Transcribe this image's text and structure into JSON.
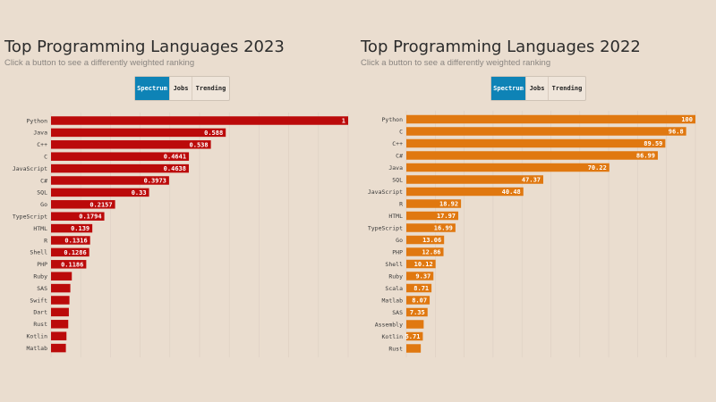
{
  "colors": {
    "background": "#eaddcf",
    "button_active": "#0e83b6",
    "bar_2023": "#bb0a0a",
    "bar_2022": "#e07810",
    "grid": "#dccfc2"
  },
  "left": {
    "title": "Top Programming Languages 2023",
    "subtitle": "Click a button to see a differently weighted ranking",
    "buttons": [
      {
        "label": "Spectrum",
        "active": true
      },
      {
        "label": "Jobs",
        "active": false
      },
      {
        "label": "Trending",
        "active": false
      }
    ]
  },
  "right": {
    "title": "Top Programming Languages 2022",
    "subtitle": "Click a button to see a differently weighted ranking",
    "buttons": [
      {
        "label": "Spectrum",
        "active": true
      },
      {
        "label": "Jobs",
        "active": false
      },
      {
        "label": "Trending",
        "active": false
      }
    ]
  },
  "chart_data": [
    {
      "type": "bar",
      "orientation": "horizontal",
      "title": "Top Programming Languages 2023",
      "categories": [
        "Python",
        "Java",
        "C++",
        "C",
        "JavaScript",
        "C#",
        "SQL",
        "Go",
        "TypeScript",
        "HTML",
        "R",
        "Shell",
        "PHP",
        "Ruby",
        "SAS",
        "Swift",
        "Dart",
        "Rust",
        "Kotlin",
        "Matlab"
      ],
      "values": [
        1,
        0.588,
        0.538,
        0.4641,
        0.4638,
        0.3973,
        0.33,
        0.2157,
        0.1794,
        0.139,
        0.1316,
        0.1286,
        0.1186,
        0.07,
        0.065,
        0.062,
        0.06,
        0.058,
        0.052,
        0.05
      ],
      "value_labels": [
        "1",
        "0.588",
        "0.538",
        "0.4641",
        "0.4638",
        "0.3973",
        "0.33",
        "0.2157",
        "0.1794",
        "0.139",
        "0.1316",
        "0.1286",
        "0.1186",
        "",
        "",
        "",
        "",
        "",
        "",
        ""
      ],
      "xlim": [
        0,
        1
      ],
      "color": "#bb0a0a",
      "grid": true
    },
    {
      "type": "bar",
      "orientation": "horizontal",
      "title": "Top Programming Languages 2022",
      "categories": [
        "Python",
        "C",
        "C++",
        "C#",
        "Java",
        "SQL",
        "JavaScript",
        "R",
        "HTML",
        "TypeScript",
        "Go",
        "PHP",
        "Shell",
        "Ruby",
        "Scala",
        "Matlab",
        "SAS",
        "Assembly",
        "Kotlin",
        "Rust"
      ],
      "values": [
        100,
        96.8,
        89.59,
        86.99,
        70.22,
        47.37,
        40.48,
        18.92,
        17.97,
        16.99,
        13.06,
        12.86,
        10.12,
        9.37,
        8.71,
        8.07,
        7.35,
        6.0,
        5.71,
        5.0
      ],
      "value_labels": [
        "100",
        "96.8",
        "89.59",
        "86.99",
        "70.22",
        "47.37",
        "40.48",
        "18.92",
        "17.97",
        "16.99",
        "13.06",
        "12.86",
        "10.12",
        "9.37",
        "8.71",
        "8.07",
        "7.35",
        "",
        "5.71",
        ""
      ],
      "xlim": [
        0,
        100
      ],
      "color": "#e07810",
      "grid": true
    }
  ]
}
